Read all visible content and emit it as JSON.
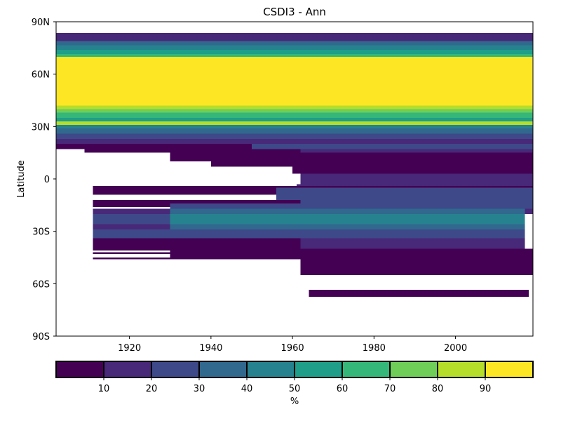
{
  "chart_data": {
    "type": "heatmap",
    "title": "CSDI3 - Ann",
    "xlabel": "",
    "ylabel": "Latitude",
    "x_range": [
      1902,
      2019
    ],
    "y_range": [
      -90,
      90
    ],
    "x_ticks": [
      {
        "value": 1920,
        "label": "1920"
      },
      {
        "value": 1940,
        "label": "1940"
      },
      {
        "value": 1960,
        "label": "1960"
      },
      {
        "value": 1980,
        "label": "1980"
      },
      {
        "value": 2000,
        "label": "2000"
      }
    ],
    "y_ticks": [
      {
        "value": 90,
        "label": "90N"
      },
      {
        "value": 60,
        "label": "60N"
      },
      {
        "value": 30,
        "label": "30N"
      },
      {
        "value": 0,
        "label": "0"
      },
      {
        "value": -30,
        "label": "30S"
      },
      {
        "value": -60,
        "label": "60S"
      },
      {
        "value": -90,
        "label": "90S"
      }
    ],
    "colorbar": {
      "label": "%",
      "bins": [
        {
          "from": 0,
          "to": 10,
          "color": "#440154"
        },
        {
          "from": 10,
          "to": 20,
          "color": "#482878"
        },
        {
          "from": 20,
          "to": 30,
          "color": "#3e4989"
        },
        {
          "from": 30,
          "to": 40,
          "color": "#31688e"
        },
        {
          "from": 40,
          "to": 50,
          "color": "#26828e"
        },
        {
          "from": 50,
          "to": 60,
          "color": "#1f9e89"
        },
        {
          "from": 60,
          "to": 70,
          "color": "#35b779"
        },
        {
          "from": 70,
          "to": 80,
          "color": "#6ece58"
        },
        {
          "from": 80,
          "to": 90,
          "color": "#b5de2b"
        },
        {
          "from": 90,
          "to": 100,
          "color": "#fde725"
        }
      ],
      "tick_values": [
        10,
        20,
        30,
        40,
        50,
        60,
        70,
        80,
        90
      ],
      "tick_labels": [
        "10",
        "20",
        "30",
        "40",
        "50",
        "60",
        "70",
        "80",
        "90"
      ]
    },
    "bands": [
      {
        "x0": 1902,
        "x1": 2019,
        "y0": 83.5,
        "y1": 79,
        "bin": 1
      },
      {
        "x0": 1902,
        "x1": 2019,
        "y0": 79,
        "y1": 76.5,
        "bin": 3
      },
      {
        "x0": 1902,
        "x1": 2019,
        "y0": 76.5,
        "y1": 74,
        "bin": 4
      },
      {
        "x0": 1902,
        "x1": 2019,
        "y0": 74,
        "y1": 71.5,
        "bin": 5
      },
      {
        "x0": 1902,
        "x1": 2019,
        "y0": 71.5,
        "y1": 70,
        "bin": 6
      },
      {
        "x0": 1902,
        "x1": 2019,
        "y0": 70,
        "y1": 42,
        "bin": 9
      },
      {
        "x0": 1902,
        "x1": 2019,
        "y0": 42,
        "y1": 40,
        "bin": 8
      },
      {
        "x0": 1902,
        "x1": 2019,
        "y0": 40,
        "y1": 38,
        "bin": 7
      },
      {
        "x0": 1902,
        "x1": 2019,
        "y0": 38,
        "y1": 35,
        "bin": 6
      },
      {
        "x0": 1902,
        "x1": 2019,
        "y0": 35,
        "y1": 33,
        "bin": 5
      },
      {
        "x0": 1902,
        "x1": 2019,
        "y0": 33,
        "y1": 31,
        "bin": 8
      },
      {
        "x0": 1902,
        "x1": 2019,
        "y0": 31,
        "y1": 29,
        "bin": 4
      },
      {
        "x0": 1902,
        "x1": 2019,
        "y0": 29,
        "y1": 26,
        "bin": 3
      },
      {
        "x0": 1902,
        "x1": 2019,
        "y0": 26,
        "y1": 23,
        "bin": 2
      },
      {
        "x0": 1902,
        "x1": 2019,
        "y0": 23,
        "y1": 20,
        "bin": 1
      },
      {
        "x0": 1902,
        "x1": 1950,
        "y0": 20,
        "y1": 17,
        "bin": 0
      },
      {
        "x0": 1950,
        "x1": 2019,
        "y0": 20,
        "y1": 17,
        "bin": 2
      },
      {
        "x0": 1950,
        "x1": 2019,
        "y0": 17,
        "y1": 15,
        "bin": 1
      },
      {
        "x0": 1909,
        "x1": 1962,
        "y0": 17,
        "y1": 15,
        "bin": 0
      },
      {
        "x0": 1930,
        "x1": 2019,
        "y0": 15,
        "y1": 10,
        "bin": 0
      },
      {
        "x0": 1940,
        "x1": 2019,
        "y0": 10,
        "y1": 7,
        "bin": 0
      },
      {
        "x0": 1960,
        "x1": 2019,
        "y0": 7,
        "y1": 3,
        "bin": 0
      },
      {
        "x0": 1962,
        "x1": 2019,
        "y0": 3,
        "y1": -3,
        "bin": 1
      },
      {
        "x0": 1961,
        "x1": 2019,
        "y0": -3,
        "y1": -5,
        "bin": 1
      },
      {
        "x0": 1911,
        "x1": 2019,
        "y0": -4,
        "y1": -9,
        "bin": 0
      },
      {
        "x0": 1956,
        "x1": 2019,
        "y0": -5,
        "y1": -12,
        "bin": 2
      },
      {
        "x0": 1911,
        "x1": 2019,
        "y0": -12,
        "y1": -16,
        "bin": 0
      },
      {
        "x0": 1962,
        "x1": 2019,
        "y0": -12,
        "y1": -17,
        "bin": 2
      },
      {
        "x0": 1930,
        "x1": 2019,
        "y0": -14,
        "y1": -17,
        "bin": 2
      },
      {
        "x0": 1911,
        "x1": 2019,
        "y0": -17,
        "y1": -20,
        "bin": 1
      },
      {
        "x0": 1930,
        "x1": 2017,
        "y0": -17,
        "y1": -20,
        "bin": 3
      },
      {
        "x0": 1911,
        "x1": 1930,
        "y0": -20,
        "y1": -26,
        "bin": 2
      },
      {
        "x0": 1930,
        "x1": 2017,
        "y0": -20,
        "y1": -26,
        "bin": 4
      },
      {
        "x0": 1911,
        "x1": 2017,
        "y0": -26,
        "y1": -29,
        "bin": 1
      },
      {
        "x0": 1930,
        "x1": 2017,
        "y0": -26,
        "y1": -29,
        "bin": 3
      },
      {
        "x0": 1911,
        "x1": 2017,
        "y0": -29,
        "y1": -34,
        "bin": 2
      },
      {
        "x0": 1911,
        "x1": 1962,
        "y0": -34,
        "y1": -40,
        "bin": 0
      },
      {
        "x0": 1962,
        "x1": 2017,
        "y0": -34,
        "y1": -40,
        "bin": 1
      },
      {
        "x0": 1930,
        "x1": 2019,
        "y0": -40,
        "y1": -46,
        "bin": 0
      },
      {
        "x0": 1962,
        "x1": 2019,
        "y0": -46,
        "y1": -55,
        "bin": 0
      },
      {
        "x0": 1911,
        "x1": 1930,
        "y0": -40,
        "y1": -41,
        "bin": 0
      },
      {
        "x0": 1911,
        "x1": 1930,
        "y0": -42,
        "y1": -43,
        "bin": 0
      },
      {
        "x0": 1911,
        "x1": 1930,
        "y0": -45,
        "y1": -46,
        "bin": 0
      },
      {
        "x0": 1964,
        "x1": 2018,
        "y0": -63.5,
        "y1": -67.5,
        "bin": 0
      }
    ]
  }
}
